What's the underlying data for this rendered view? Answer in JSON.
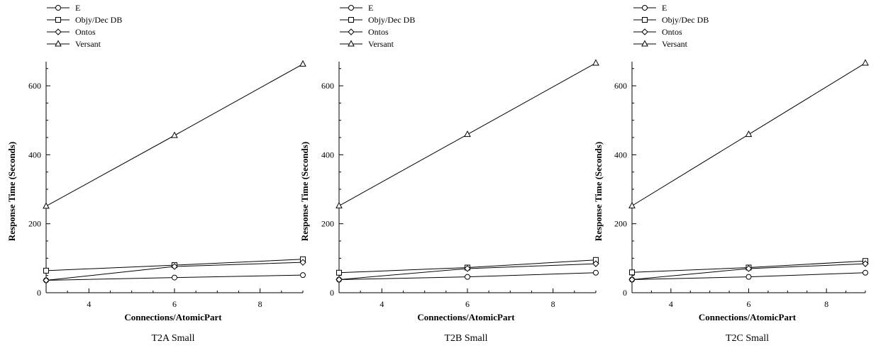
{
  "chart_data": [
    {
      "type": "line",
      "caption": "T2A Small",
      "xlabel": "Connections/AtomicPart",
      "ylabel": "Response Time (Seconds)",
      "x": [
        3,
        6,
        9
      ],
      "xlim": [
        3,
        9
      ],
      "ylim": [
        0,
        670
      ],
      "xticks": [
        4,
        6,
        8
      ],
      "yticks": [
        0,
        200,
        400,
        600
      ],
      "legend": "top-left",
      "grid": false,
      "series": [
        {
          "name": "E",
          "marker": "circle",
          "values": [
            36,
            44,
            51
          ]
        },
        {
          "name": "Objy/Dec DB",
          "marker": "square",
          "values": [
            64,
            80,
            97
          ]
        },
        {
          "name": "Ontos",
          "marker": "diamond",
          "values": [
            36,
            76,
            88
          ]
        },
        {
          "name": "Versant",
          "marker": "triangle",
          "values": [
            251,
            456,
            663
          ]
        }
      ]
    },
    {
      "type": "line",
      "caption": "T2B Small",
      "xlabel": "Connections/AtomicPart",
      "ylabel": "Response Time (Seconds)",
      "x": [
        3,
        6,
        9
      ],
      "xlim": [
        3,
        9
      ],
      "ylim": [
        0,
        670
      ],
      "xticks": [
        4,
        6,
        8
      ],
      "yticks": [
        0,
        200,
        400,
        600
      ],
      "legend": "top-left",
      "grid": false,
      "series": [
        {
          "name": "E",
          "marker": "circle",
          "values": [
            38,
            46,
            58
          ]
        },
        {
          "name": "Objy/Dec DB",
          "marker": "square",
          "values": [
            58,
            73,
            95
          ]
        },
        {
          "name": "Ontos",
          "marker": "diamond",
          "values": [
            38,
            70,
            84
          ]
        },
        {
          "name": "Versant",
          "marker": "triangle",
          "values": [
            252,
            459,
            666
          ]
        }
      ]
    },
    {
      "type": "line",
      "caption": "T2C Small",
      "xlabel": "Connections/AtomicPart",
      "ylabel": "Response Time (Seconds)",
      "x": [
        3,
        6,
        9
      ],
      "xlim": [
        3,
        9
      ],
      "ylim": [
        0,
        670
      ],
      "xticks": [
        4,
        6,
        8
      ],
      "yticks": [
        0,
        200,
        400,
        600
      ],
      "legend": "top-left",
      "grid": false,
      "series": [
        {
          "name": "E",
          "marker": "circle",
          "values": [
            38,
            46,
            58
          ]
        },
        {
          "name": "Objy/Dec DB",
          "marker": "square",
          "values": [
            59,
            73,
            92
          ]
        },
        {
          "name": "Ontos",
          "marker": "diamond",
          "values": [
            38,
            70,
            84
          ]
        },
        {
          "name": "Versant",
          "marker": "triangle",
          "values": [
            252,
            459,
            666
          ]
        }
      ]
    }
  ]
}
